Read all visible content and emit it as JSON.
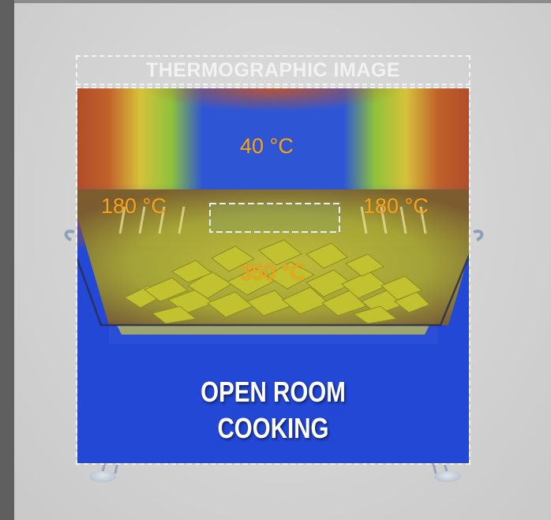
{
  "title": "THERMOGRAPHIC IMAGE",
  "labels": {
    "top_center": "40 °C",
    "left": "180 °C",
    "right": "180 °C",
    "center": "350 °C"
  },
  "caption": {
    "line1": "OPEN ROOM",
    "line2": "COOKING"
  },
  "colors": {
    "hot": "#b6512a",
    "warm": "#d9c533",
    "cool": "#2348d6",
    "label": "#f7a21c",
    "border": "#f4f4f4"
  }
}
